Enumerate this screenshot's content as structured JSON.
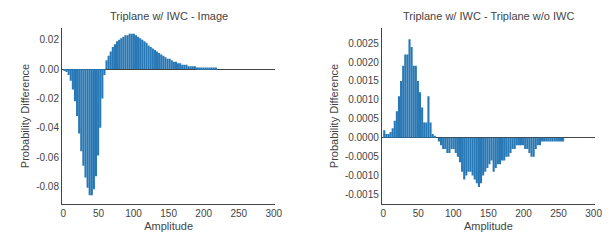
{
  "chart_data": [
    {
      "type": "histogram",
      "title": "Triplane w/ IWC - Image",
      "xlabel": "Amplitude",
      "ylabel": "Probability Difference",
      "color": "#2878b5",
      "grid": false,
      "xlim": [
        -2,
        302
      ],
      "ylim": [
        -0.092,
        0.028
      ],
      "xticks": [
        0,
        50,
        100,
        150,
        200,
        250,
        300
      ],
      "yticks": [
        0.02,
        {
          "value": 0.0,
          "label": "0.00"
        },
        -0.02,
        -0.04,
        -0.06,
        -0.08
      ],
      "bins": [
        0,
        3,
        6,
        9,
        12,
        15,
        18,
        21,
        24,
        27,
        30,
        33,
        36,
        39,
        42,
        45,
        48,
        51,
        54,
        57,
        60,
        63,
        66,
        69,
        72,
        75,
        78,
        81,
        84,
        87,
        90,
        93,
        96,
        99,
        102,
        105,
        108,
        111,
        114,
        117,
        120,
        123,
        126,
        129,
        132,
        135,
        138,
        141,
        144,
        147,
        150,
        153,
        156,
        159,
        162,
        165,
        168,
        171,
        174,
        177,
        180,
        183,
        186,
        189,
        192,
        195,
        198,
        201,
        204,
        207,
        210,
        213,
        216,
        219,
        222,
        225,
        228,
        231,
        234,
        237,
        240,
        243,
        246,
        249,
        252,
        255,
        258,
        261,
        264,
        267,
        270,
        273,
        276,
        279,
        282,
        285,
        288,
        291,
        294,
        297,
        300
      ],
      "values": [
        -0.001,
        -0.002,
        -0.004,
        -0.008,
        -0.014,
        -0.022,
        -0.032,
        -0.044,
        -0.056,
        -0.066,
        -0.074,
        -0.081,
        -0.086,
        -0.086,
        -0.082,
        -0.073,
        -0.059,
        -0.04,
        -0.02,
        -0.004,
        0.006,
        0.009,
        0.012,
        0.015,
        0.017,
        0.019,
        0.02,
        0.021,
        0.022,
        0.023,
        0.023,
        0.024,
        0.024,
        0.024,
        0.023,
        0.022,
        0.021,
        0.02,
        0.019,
        0.018,
        0.016,
        0.015,
        0.014,
        0.013,
        0.012,
        0.011,
        0.01,
        0.009,
        0.008,
        0.007,
        0.007,
        0.006,
        0.005,
        0.005,
        0.004,
        0.004,
        0.003,
        0.003,
        0.003,
        0.002,
        0.002,
        0.002,
        0.002,
        0.001,
        0.001,
        0.001,
        0.001,
        0.001,
        0.001,
        0.001,
        0.001,
        0.001,
        0.001,
        0.0,
        0.0,
        0.0,
        0.0,
        0.0,
        0.0,
        0.0,
        0.0,
        0.0,
        0.0,
        0.0,
        0.0,
        0.0,
        0.0,
        0.0,
        0.0,
        0.0,
        0.0,
        0.0,
        0.0,
        0.0,
        0.0,
        0.0,
        0.0,
        0.0,
        0.0,
        0.0
      ]
    },
    {
      "type": "histogram",
      "title": "Triplane w/ IWC - Triplane w/o IWC",
      "xlabel": "Amplitude",
      "ylabel": "Probability Difference",
      "color": "#2878b5",
      "grid": false,
      "xlim": [
        -2,
        302
      ],
      "ylim": [
        -0.00175,
        0.0029
      ],
      "xticks": [
        0,
        50,
        100,
        150,
        200,
        250,
        300
      ],
      "yticks": [
        0.0025,
        {
          "value": 0.002,
          "label": "0.0020"
        },
        0.0015,
        {
          "value": 0.001,
          "label": "0.0010"
        },
        0.0005,
        {
          "value": 0.0,
          "label": "0.0000"
        },
        -0.0005,
        {
          "value": -0.001,
          "label": "-0.0010"
        },
        -0.0015
      ],
      "bins": [
        0,
        3,
        6,
        9,
        12,
        15,
        18,
        21,
        24,
        27,
        30,
        33,
        36,
        39,
        42,
        45,
        48,
        51,
        54,
        57,
        60,
        63,
        66,
        69,
        72,
        75,
        78,
        81,
        84,
        87,
        90,
        93,
        96,
        99,
        102,
        105,
        108,
        111,
        114,
        117,
        120,
        123,
        126,
        129,
        132,
        135,
        138,
        141,
        144,
        147,
        150,
        153,
        156,
        159,
        162,
        165,
        168,
        171,
        174,
        177,
        180,
        183,
        186,
        189,
        192,
        195,
        198,
        201,
        204,
        207,
        210,
        213,
        216,
        219,
        222,
        225,
        228,
        231,
        234,
        237,
        240,
        243,
        246,
        249,
        252,
        255,
        258,
        261,
        264,
        267,
        270,
        273,
        276,
        279,
        282,
        285,
        288,
        291,
        294,
        297,
        300
      ],
      "values": [
        0.0002,
        0.0001,
        0.0001,
        0.00015,
        0.00025,
        0.00045,
        0.0007,
        0.0011,
        0.0015,
        0.0019,
        0.0022,
        0.0022,
        0.0026,
        0.0024,
        0.0019,
        0.0019,
        0.0015,
        0.0012,
        0.0008,
        0.0004,
        0.0004,
        0.0011,
        0.0004,
        0.0001,
        5e-05,
        0.0,
        -0.0001,
        -0.0002,
        -0.0003,
        -0.0003,
        -0.0004,
        -0.0004,
        -0.0003,
        -0.0003,
        -0.0004,
        -0.0005,
        -0.00065,
        -0.0009,
        -0.0011,
        -0.001,
        -0.0009,
        -0.0009,
        -0.001,
        -0.0011,
        -0.0012,
        -0.0013,
        -0.0012,
        -0.001,
        -0.0009,
        -0.0008,
        -0.0007,
        -0.0006,
        -0.0009,
        -0.0008,
        -0.0007,
        -0.0007,
        -0.0006,
        -0.0006,
        -0.0005,
        -0.0005,
        -0.0004,
        -0.0003,
        -0.0003,
        -0.0002,
        -0.0002,
        -0.0002,
        -0.0002,
        -0.0003,
        -0.0003,
        -0.0004,
        -0.0005,
        -0.0005,
        -0.0003,
        -0.0002,
        -0.0002,
        -0.0001,
        -0.0001,
        -0.0001,
        -0.0001,
        -0.0001,
        -0.0001,
        -0.0001,
        -0.0001,
        -0.0001,
        -0.0001,
        -0.0001,
        0.0,
        0.0,
        0.0,
        0.0,
        0.0,
        0.0,
        0.0,
        0.0,
        0.0,
        0.0,
        0.0,
        0.0,
        0.0,
        0.0
      ]
    }
  ]
}
